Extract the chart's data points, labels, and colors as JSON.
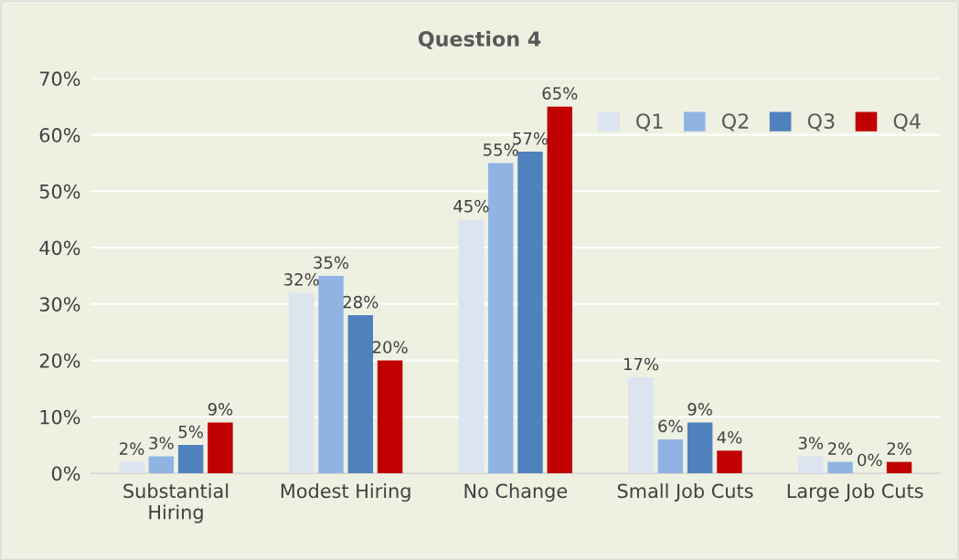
{
  "chart_data": {
    "type": "bar",
    "title": "Question 4",
    "categories": [
      "Substantial\nHiring",
      "Modest Hiring",
      "No Change",
      "Small Job Cuts",
      "Large Job Cuts"
    ],
    "series": [
      {
        "name": "Q1",
        "color": "#dce4f0",
        "values": [
          2,
          32,
          45,
          17,
          3
        ],
        "value_labels": [
          "2%",
          "32%",
          "45%",
          "17%",
          "3%"
        ]
      },
      {
        "name": "Q2",
        "color": "#8fb4e3",
        "values": [
          3,
          35,
          55,
          6,
          2
        ],
        "value_labels": [
          "3%",
          "35%",
          "55%",
          "6%",
          "2%"
        ]
      },
      {
        "name": "Q3",
        "color": "#4f81bd",
        "values": [
          5,
          28,
          57,
          9,
          0
        ],
        "value_labels": [
          "5%",
          "28%",
          "57%",
          "9%",
          "0%"
        ]
      },
      {
        "name": "Q4",
        "color": "#c00000",
        "values": [
          9,
          20,
          65,
          4,
          2
        ],
        "value_labels": [
          "9%",
          "20%",
          "65%",
          "4%",
          "2%"
        ]
      }
    ],
    "ylim": [
      0,
      70
    ],
    "yticks": [
      {
        "value": 0,
        "label": "0%"
      },
      {
        "value": 10,
        "label": "10%"
      },
      {
        "value": 20,
        "label": "20%"
      },
      {
        "value": 30,
        "label": "30%"
      },
      {
        "value": 40,
        "label": "40%"
      },
      {
        "value": 50,
        "label": "50%"
      },
      {
        "value": 60,
        "label": "60%"
      },
      {
        "value": 70,
        "label": "70%"
      }
    ],
    "grid": "y",
    "legend": "top right"
  }
}
